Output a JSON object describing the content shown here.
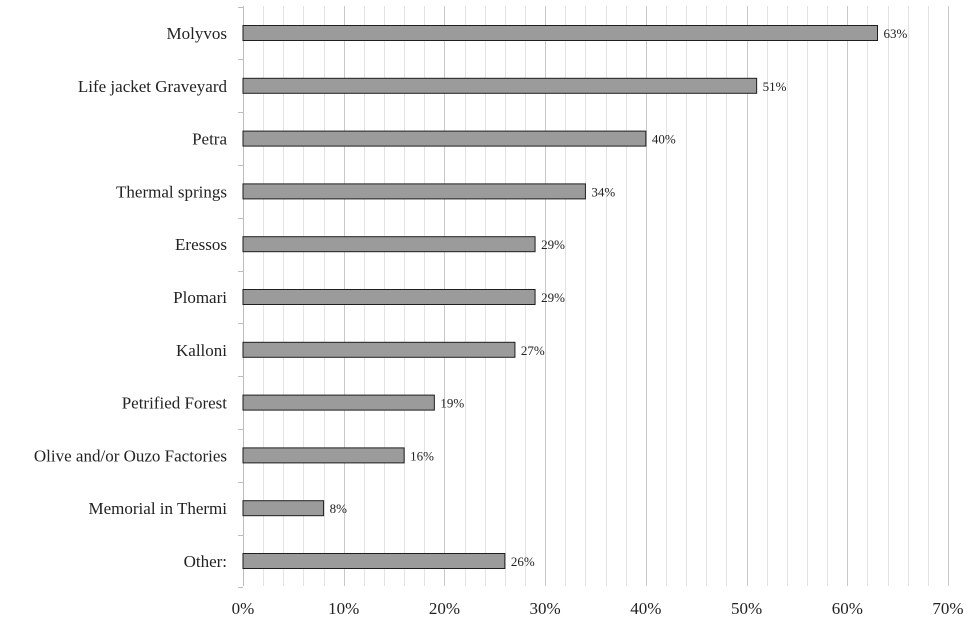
{
  "chart_data": {
    "type": "bar",
    "orientation": "horizontal",
    "title": "",
    "xlabel": "",
    "ylabel": "",
    "categories": [
      "Molyvos",
      "Life jacket Graveyard",
      "Petra",
      "Thermal springs",
      "Eressos",
      "Plomari",
      "Kalloni",
      "Petrified Forest",
      "Olive and/or Ouzo Factories",
      "Memorial in Thermi",
      "Other:"
    ],
    "values": [
      63,
      51,
      40,
      34,
      29,
      29,
      27,
      19,
      16,
      8,
      26
    ],
    "data_labels": [
      "63%",
      "51%",
      "40%",
      "34%",
      "29%",
      "29%",
      "27%",
      "19%",
      "16%",
      "8%",
      "26%"
    ],
    "xlim": [
      0,
      70
    ],
    "x_ticks": [
      0,
      10,
      20,
      30,
      40,
      50,
      60,
      70
    ],
    "x_tick_labels": [
      "0%",
      "10%",
      "20%",
      "30%",
      "40%",
      "50%",
      "60%",
      "70%"
    ],
    "minor_grid_step": 2,
    "grid": true,
    "legend": "none",
    "colors": {
      "bar_fill": "#9b9b9b",
      "bar_stroke": "#1e1e1e",
      "major_grid": "#c8c8c8",
      "minor_grid": "#e3e3e3"
    }
  }
}
